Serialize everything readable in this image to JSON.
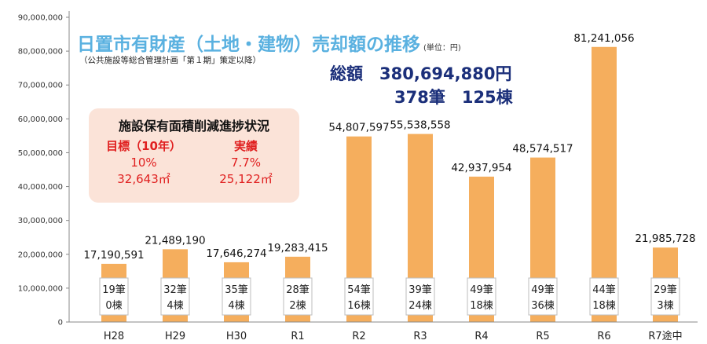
{
  "title": "日置市有財産（土地・建物）売却額の推移",
  "unit": "(単位：円)",
  "subtitle": "（公共施設等総合管理計画「第１期」策定以降）",
  "totals": {
    "line1": "総額　380,694,880円",
    "line2": "378筆　125棟"
  },
  "infobox": {
    "title": "施設保有面積削減進捗状況",
    "target": {
      "header": "目標（10年）",
      "pct": "10%",
      "area": "32,643㎡"
    },
    "actual": {
      "header": "実績",
      "pct": "7.7%",
      "area": "25,122㎡"
    }
  },
  "chart_data": {
    "type": "bar",
    "categories": [
      "H28",
      "H29",
      "H30",
      "R1",
      "R2",
      "R3",
      "R4",
      "R5",
      "R6",
      "R7途中"
    ],
    "values": [
      17190591,
      21489190,
      17646274,
      19283415,
      54807597,
      55538558,
      42937954,
      48574517,
      81241056,
      21985728
    ],
    "value_labels": [
      "17,190,591",
      "21,489,190",
      "17,646,274",
      "19,283,415",
      "54,807,597",
      "55,538,558",
      "42,937,954",
      "48,574,517",
      "81,241,056",
      "21,985,728"
    ],
    "parcels": [
      "19筆",
      "32筆",
      "35筆",
      "28筆",
      "54筆",
      "39筆",
      "49筆",
      "49筆",
      "44筆",
      "29筆"
    ],
    "buildings": [
      "0棟",
      "4棟",
      "4棟",
      "2棟",
      "16棟",
      "24棟",
      "18棟",
      "36棟",
      "18棟",
      "3棟"
    ],
    "ylim": [
      0,
      90000000
    ],
    "yticks": [
      0,
      10000000,
      20000000,
      30000000,
      40000000,
      50000000,
      60000000,
      70000000,
      80000000,
      90000000
    ],
    "ytick_labels": [
      "0",
      "10,000,000",
      "20,000,000",
      "30,000,000",
      "40,000,000",
      "50,000,000",
      "60,000,000",
      "70,000,000",
      "80,000,000",
      "90,000,000"
    ],
    "grid": false,
    "colors": {
      "bar": "#f5ae5d",
      "axis": "#888888"
    }
  }
}
